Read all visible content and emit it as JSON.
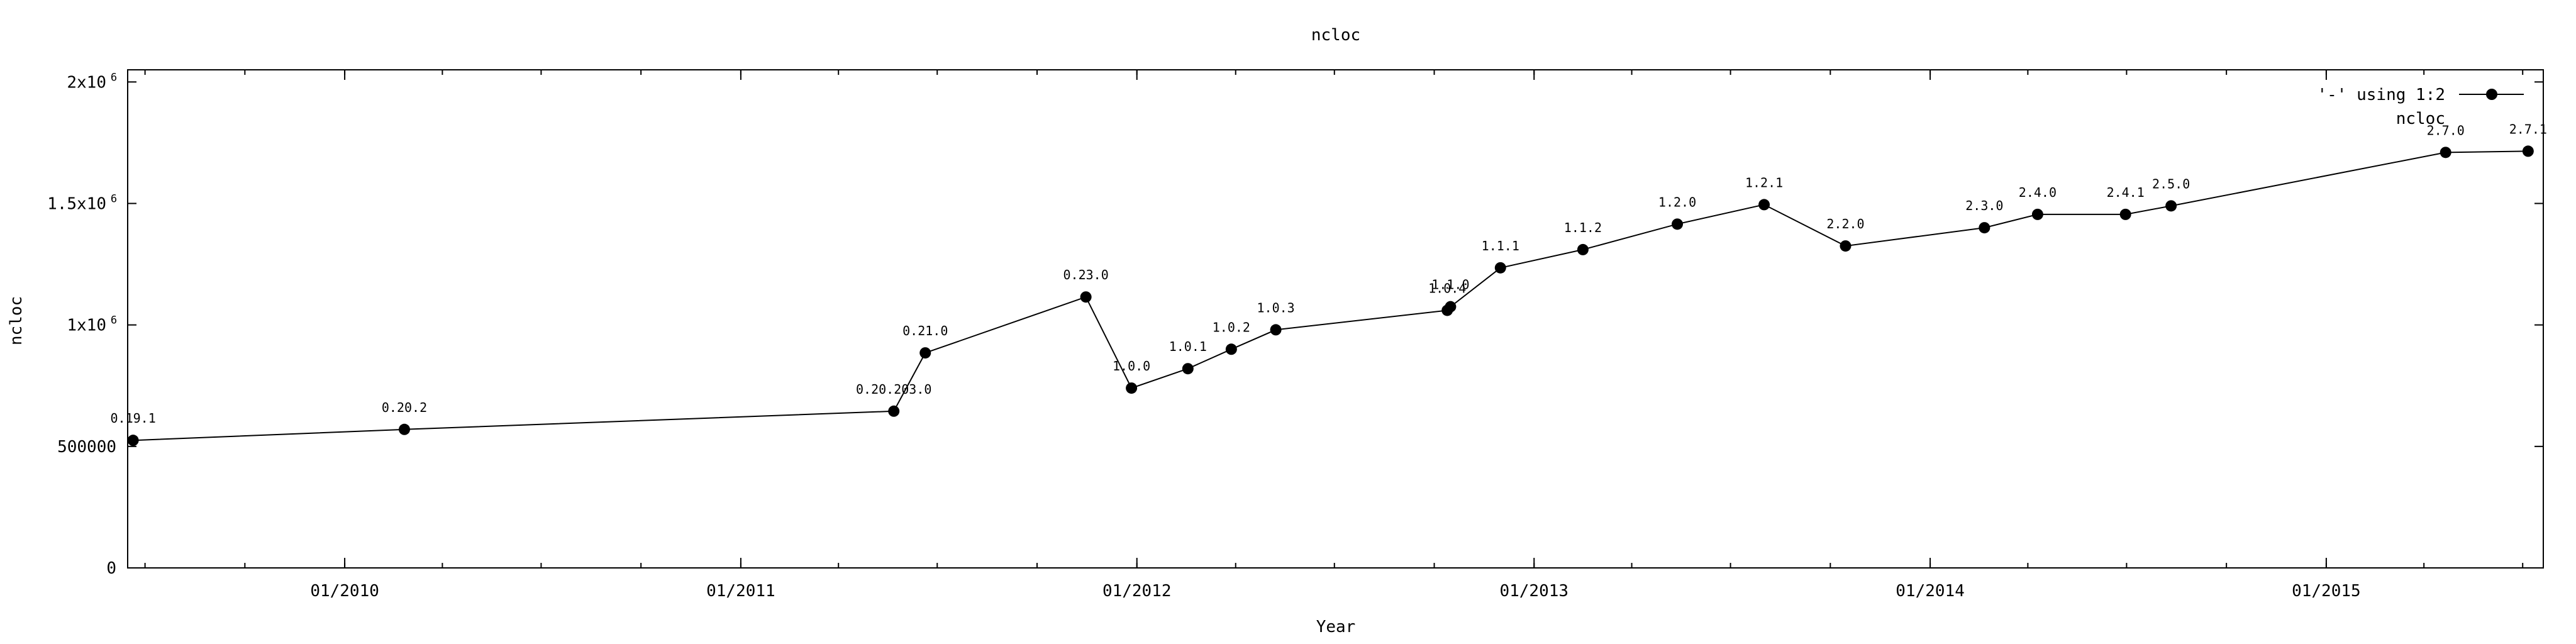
{
  "chart_data": {
    "type": "line",
    "title": "ncloc",
    "xlabel": "Year",
    "ylabel": "ncloc",
    "xlim": [
      "2009-06-15",
      "2015-07-20"
    ],
    "ylim": [
      0,
      2050000
    ],
    "x_ticks": [
      {
        "date": "2010-01-01",
        "label": "01/2010"
      },
      {
        "date": "2011-01-01",
        "label": "01/2011"
      },
      {
        "date": "2012-01-01",
        "label": "01/2012"
      },
      {
        "date": "2013-01-01",
        "label": "01/2013"
      },
      {
        "date": "2014-01-01",
        "label": "01/2014"
      },
      {
        "date": "2015-01-01",
        "label": "01/2015"
      }
    ],
    "y_ticks": [
      {
        "value": 0,
        "base": "0",
        "exp": ""
      },
      {
        "value": 500000,
        "base": "500000",
        "exp": ""
      },
      {
        "value": 1000000,
        "base": "1x10",
        "exp": "6"
      },
      {
        "value": 1500000,
        "base": "1.5x10",
        "exp": "6"
      },
      {
        "value": 2000000,
        "base": "2x10",
        "exp": "6"
      }
    ],
    "grid": false,
    "legend": {
      "position": "top-right",
      "entries": [
        {
          "label": "'-' using 1:2",
          "marker": "circle"
        },
        {
          "label": "ncloc",
          "marker": "none"
        }
      ]
    },
    "series": [
      {
        "name": "'-' using 1:2",
        "color": "#000000",
        "points": [
          {
            "x": "2009-06-20",
            "y": 525000,
            "label": "0.19.1"
          },
          {
            "x": "2010-02-25",
            "y": 570000,
            "label": "0.20.2"
          },
          {
            "x": "2011-05-22",
            "y": 645000,
            "label": "0.20.203.0"
          },
          {
            "x": "2011-06-20",
            "y": 885000,
            "label": "0.21.0"
          },
          {
            "x": "2011-11-15",
            "y": 1115000,
            "label": "0.23.0"
          },
          {
            "x": "2011-12-27",
            "y": 740000,
            "label": "1.0.0"
          },
          {
            "x": "2012-02-17",
            "y": 820000,
            "label": "1.0.1"
          },
          {
            "x": "2012-03-28",
            "y": 900000,
            "label": "1.0.2"
          },
          {
            "x": "2012-05-08",
            "y": 980000,
            "label": "1.0.3"
          },
          {
            "x": "2012-10-13",
            "y": 1060000,
            "label": "1.0.4"
          },
          {
            "x": "2012-10-16",
            "y": 1075000,
            "label": "1.1.0"
          },
          {
            "x": "2012-12-01",
            "y": 1235000,
            "label": "1.1.1"
          },
          {
            "x": "2013-02-15",
            "y": 1310000,
            "label": "1.1.2"
          },
          {
            "x": "2013-05-13",
            "y": 1415000,
            "label": "1.2.0"
          },
          {
            "x": "2013-08-01",
            "y": 1495000,
            "label": "1.2.1"
          },
          {
            "x": "2013-10-15",
            "y": 1325000,
            "label": "2.2.0"
          },
          {
            "x": "2014-02-20",
            "y": 1400000,
            "label": "2.3.0"
          },
          {
            "x": "2014-04-10",
            "y": 1455000,
            "label": "2.4.0"
          },
          {
            "x": "2014-06-30",
            "y": 1455000,
            "label": "2.4.1"
          },
          {
            "x": "2014-08-11",
            "y": 1490000,
            "label": "2.5.0"
          },
          {
            "x": "2015-04-21",
            "y": 1710000,
            "label": "2.7.0"
          },
          {
            "x": "2015-07-06",
            "y": 1715000,
            "label": "2.7.1"
          }
        ]
      }
    ]
  }
}
